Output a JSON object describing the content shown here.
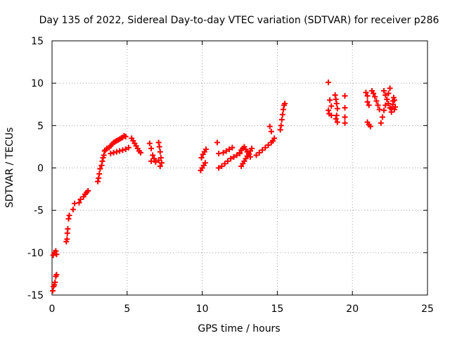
{
  "chart_data": {
    "type": "scatter",
    "title": "Day 135 of 2022, Sidereal Day-to-day VTEC variation (SDTVAR) for receiver p286",
    "xlabel": "GPS time / hours",
    "ylabel": "SDTVAR / TECUs",
    "xlim": [
      0,
      25
    ],
    "ylim": [
      -15,
      15
    ],
    "xticks": [
      0,
      5,
      10,
      15,
      20,
      25
    ],
    "xtick_labels": [
      "0",
      "5",
      "10",
      "15",
      "20",
      "25"
    ],
    "yticks": [
      -15,
      -10,
      -5,
      0,
      5,
      10,
      15
    ],
    "ytick_labels": [
      "-15",
      "-10",
      "-5",
      "0",
      "5",
      "10",
      "15"
    ],
    "grid": true,
    "marker": "+",
    "colors": {
      "points": "#ff0000",
      "grid": "#a0a0a0",
      "axes": "#000000"
    },
    "series": [
      {
        "name": "SDTVAR",
        "points": [
          [
            0.05,
            -14.5
          ],
          [
            0.1,
            -14.0
          ],
          [
            0.15,
            -13.8
          ],
          [
            0.2,
            -13.5
          ],
          [
            0.25,
            -12.8
          ],
          [
            0.3,
            -12.6
          ],
          [
            0.08,
            -10.3
          ],
          [
            0.15,
            -10.0
          ],
          [
            0.25,
            -9.8
          ],
          [
            0.3,
            -10.2
          ],
          [
            0.95,
            -8.7
          ],
          [
            1.0,
            -8.4
          ],
          [
            1.02,
            -7.7
          ],
          [
            1.05,
            -7.2
          ],
          [
            1.1,
            -6.0
          ],
          [
            1.15,
            -5.6
          ],
          [
            1.4,
            -4.9
          ],
          [
            1.5,
            -4.2
          ],
          [
            1.8,
            -4.1
          ],
          [
            1.9,
            -3.7
          ],
          [
            2.1,
            -3.4
          ],
          [
            2.2,
            -3.1
          ],
          [
            2.3,
            -2.9
          ],
          [
            2.4,
            -2.7
          ],
          [
            3.05,
            -1.6
          ],
          [
            3.1,
            -1.2
          ],
          [
            3.15,
            -0.7
          ],
          [
            3.2,
            -0.1
          ],
          [
            3.3,
            0.3
          ],
          [
            3.35,
            0.8
          ],
          [
            3.4,
            1.2
          ],
          [
            3.45,
            1.5
          ],
          [
            3.5,
            2.0
          ],
          [
            3.55,
            2.1
          ],
          [
            3.65,
            2.3
          ],
          [
            3.8,
            2.4
          ],
          [
            3.9,
            2.6
          ],
          [
            4.0,
            2.8
          ],
          [
            4.1,
            3.0
          ],
          [
            4.2,
            3.1
          ],
          [
            4.3,
            3.2
          ],
          [
            4.4,
            3.3
          ],
          [
            4.5,
            3.4
          ],
          [
            4.6,
            3.5
          ],
          [
            4.7,
            3.6
          ],
          [
            4.8,
            3.8
          ],
          [
            4.9,
            3.7
          ],
          [
            3.9,
            1.7
          ],
          [
            4.1,
            1.8
          ],
          [
            4.3,
            1.9
          ],
          [
            4.5,
            2.0
          ],
          [
            4.7,
            2.1
          ],
          [
            4.9,
            2.2
          ],
          [
            5.1,
            2.4
          ],
          [
            5.3,
            3.5
          ],
          [
            5.4,
            3.2
          ],
          [
            5.5,
            2.9
          ],
          [
            5.6,
            2.6
          ],
          [
            5.7,
            2.3
          ],
          [
            5.8,
            2.0
          ],
          [
            5.9,
            1.8
          ],
          [
            6.5,
            2.9
          ],
          [
            6.6,
            2.3
          ],
          [
            6.7,
            1.5
          ],
          [
            6.8,
            1.1
          ],
          [
            6.6,
            0.8
          ],
          [
            6.9,
            0.7
          ],
          [
            7.1,
            3.0
          ],
          [
            7.15,
            2.5
          ],
          [
            7.2,
            1.9
          ],
          [
            7.25,
            1.2
          ],
          [
            7.3,
            0.6
          ],
          [
            7.2,
            0.2
          ],
          [
            7.1,
            0.9
          ],
          [
            9.9,
            -0.3
          ],
          [
            10.0,
            0.0
          ],
          [
            10.1,
            0.3
          ],
          [
            10.2,
            0.6
          ],
          [
            9.95,
            1.2
          ],
          [
            10.05,
            1.6
          ],
          [
            10.15,
            1.9
          ],
          [
            10.25,
            2.2
          ],
          [
            11.0,
            3.0
          ],
          [
            11.1,
            1.7
          ],
          [
            11.4,
            1.8
          ],
          [
            11.6,
            2.0
          ],
          [
            11.8,
            2.2
          ],
          [
            12.0,
            2.4
          ],
          [
            11.1,
            0.0
          ],
          [
            11.3,
            0.2
          ],
          [
            11.5,
            0.5
          ],
          [
            11.7,
            0.8
          ],
          [
            11.9,
            1.1
          ],
          [
            12.1,
            1.3
          ],
          [
            12.3,
            1.5
          ],
          [
            12.5,
            1.7
          ],
          [
            12.5,
            1.8
          ],
          [
            12.6,
            2.1
          ],
          [
            12.7,
            2.3
          ],
          [
            12.8,
            2.5
          ],
          [
            12.9,
            2.2
          ],
          [
            13.0,
            1.9
          ],
          [
            13.1,
            1.6
          ],
          [
            13.2,
            1.3
          ],
          [
            12.6,
            0.2
          ],
          [
            12.7,
            0.5
          ],
          [
            12.8,
            0.8
          ],
          [
            12.9,
            1.1
          ],
          [
            13.0,
            1.4
          ],
          [
            13.1,
            1.7
          ],
          [
            13.2,
            2.0
          ],
          [
            13.3,
            2.3
          ],
          [
            13.6,
            1.5
          ],
          [
            13.8,
            1.8
          ],
          [
            14.0,
            2.1
          ],
          [
            14.2,
            2.4
          ],
          [
            14.4,
            2.7
          ],
          [
            14.6,
            3.0
          ],
          [
            14.5,
            4.9
          ],
          [
            14.6,
            4.3
          ],
          [
            14.7,
            3.2
          ],
          [
            14.8,
            3.5
          ],
          [
            15.2,
            4.5
          ],
          [
            15.25,
            5.0
          ],
          [
            15.3,
            5.7
          ],
          [
            15.35,
            6.3
          ],
          [
            15.4,
            6.9
          ],
          [
            15.45,
            7.4
          ],
          [
            15.5,
            7.6
          ],
          [
            18.4,
            10.1
          ],
          [
            18.5,
            8.0
          ],
          [
            18.6,
            7.3
          ],
          [
            18.4,
            6.8
          ],
          [
            18.45,
            6.4
          ],
          [
            18.6,
            6.2
          ],
          [
            18.85,
            8.6
          ],
          [
            18.9,
            8.1
          ],
          [
            18.95,
            7.6
          ],
          [
            19.0,
            7.0
          ],
          [
            18.95,
            6.2
          ],
          [
            18.9,
            5.8
          ],
          [
            19.0,
            5.4
          ],
          [
            19.5,
            8.5
          ],
          [
            19.5,
            7.1
          ],
          [
            19.5,
            6.0
          ],
          [
            19.5,
            5.3
          ],
          [
            20.9,
            8.9
          ],
          [
            21.0,
            8.5
          ],
          [
            21.0,
            7.8
          ],
          [
            21.1,
            7.4
          ],
          [
            21.0,
            5.4
          ],
          [
            21.1,
            5.1
          ],
          [
            21.2,
            4.9
          ],
          [
            21.3,
            9.1
          ],
          [
            21.4,
            8.8
          ],
          [
            21.5,
            8.4
          ],
          [
            21.6,
            7.9
          ],
          [
            21.7,
            7.4
          ],
          [
            21.8,
            6.9
          ],
          [
            21.9,
            5.3
          ],
          [
            22.0,
            6.0
          ],
          [
            22.1,
            6.8
          ],
          [
            22.2,
            7.4
          ],
          [
            22.3,
            8.1
          ],
          [
            22.4,
            8.8
          ],
          [
            22.5,
            9.4
          ],
          [
            22.1,
            9.1
          ],
          [
            22.2,
            8.6
          ],
          [
            22.3,
            8.1
          ],
          [
            22.4,
            7.6
          ],
          [
            22.5,
            7.1
          ],
          [
            22.6,
            6.6
          ],
          [
            22.6,
            7.0
          ],
          [
            22.7,
            7.5
          ],
          [
            22.8,
            8.0
          ],
          [
            22.85,
            7.2
          ],
          [
            22.8,
            6.9
          ],
          [
            22.7,
            7.9
          ],
          [
            22.75,
            8.3
          ]
        ]
      }
    ]
  }
}
